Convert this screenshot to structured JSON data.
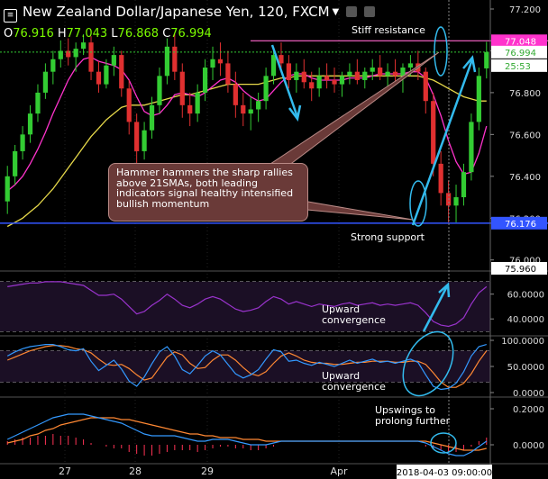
{
  "header": {
    "instrument": "New Zealand Dollar/Japanese Yen, 120, FXCM",
    "open_label": "O",
    "open": "76.916",
    "high_label": "H",
    "high": "77.043",
    "low_label": "L",
    "low": "76.868",
    "close_label": "C",
    "close": "76.994",
    "menu_icon": "caret-down-icon",
    "settings_icon": "gear-icon",
    "close_icon": "close-icon"
  },
  "annotations": {
    "stiff_resistance": "Stiff resistance",
    "strong_support": "Strong support",
    "callout": "Hammer hammers the sharp rallies above 21SMAs, both leading indicators signal healthy intensified bullish momentum",
    "rsi_note_line1": "Upward",
    "rsi_note_line2": "convergence",
    "stoch_note_line1": "Upward",
    "stoch_note_line2": "convergence",
    "macd_note_line1": "Upswings to",
    "macd_note_line2": "prolong further"
  },
  "colors": {
    "background": "#000000",
    "bull_candle": "#33cc33",
    "bear_candle": "#e03030",
    "sma_fast": "#ff33cc",
    "sma_slow": "#e6d84a",
    "resistance_line": "#ff66cc",
    "support_line": "#3355ff",
    "arrow": "#33bbee",
    "rsi_line": "#9933cc",
    "stoch_k": "#3399ff",
    "stoch_d": "#ff8833",
    "macd_line": "#3399ff",
    "macd_signal": "#ff8833",
    "macd_hist": "#ff3355"
  },
  "chart_data": [
    {
      "type": "candlestick",
      "title": "New Zealand Dollar/Japanese Yen, 120, FXCM",
      "ylim": [
        75.96,
        77.2
      ],
      "y_ticks": [
        "77.200",
        "77.000",
        "76.800",
        "76.600",
        "76.400",
        "76.200",
        "76.000"
      ],
      "x_ticks": [
        "27",
        "28",
        "29",
        "Apr"
      ],
      "crosshair_time": "2018-04-03 09:00:00",
      "price_badges": [
        {
          "label": "77.048",
          "value": 77.048,
          "color": "#ff33cc",
          "text_color": "#ffffff"
        },
        {
          "label": "76.994",
          "value": 76.994,
          "color": "#ffffff",
          "text_color": "#33aa33"
        },
        {
          "label": "25:53",
          "value": 76.955,
          "color": "#ffffff",
          "text_color": "#33aa33"
        },
        {
          "label": "76.176",
          "value": 76.176,
          "color": "#3355ff",
          "text_color": "#ffffff"
        },
        {
          "label": "75.960",
          "value": 75.96,
          "color": "#ffffff",
          "text_color": "#000000"
        }
      ],
      "levels": [
        {
          "name": "Stiff resistance",
          "value": 77.048
        },
        {
          "name": "Strong support",
          "value": 76.176
        }
      ],
      "candles": [
        [
          76.28,
          76.45,
          76.22,
          76.4
        ],
        [
          76.4,
          76.55,
          76.36,
          76.52
        ],
        [
          76.52,
          76.64,
          76.48,
          76.6
        ],
        [
          76.6,
          76.74,
          76.56,
          76.7
        ],
        [
          76.7,
          76.84,
          76.66,
          76.8
        ],
        [
          76.8,
          76.94,
          76.77,
          76.9
        ],
        [
          76.9,
          77.0,
          76.84,
          76.96
        ],
        [
          76.96,
          77.05,
          76.92,
          77.0
        ],
        [
          77.0,
          77.06,
          76.93,
          76.97
        ],
        [
          76.97,
          77.04,
          76.9,
          77.01
        ],
        [
          77.01,
          77.08,
          76.98,
          77.04
        ],
        [
          77.04,
          77.07,
          76.86,
          76.9
        ],
        [
          76.9,
          76.95,
          76.8,
          76.84
        ],
        [
          76.84,
          76.96,
          76.82,
          76.93
        ],
        [
          76.93,
          77.02,
          76.88,
          76.98
        ],
        [
          76.98,
          77.0,
          76.78,
          76.82
        ],
        [
          76.82,
          76.86,
          76.6,
          76.66
        ],
        [
          76.66,
          76.7,
          76.46,
          76.52
        ],
        [
          76.52,
          76.66,
          76.48,
          76.62
        ],
        [
          76.62,
          76.78,
          76.58,
          76.74
        ],
        [
          76.74,
          76.92,
          76.7,
          76.88
        ],
        [
          76.88,
          77.06,
          76.84,
          77.02
        ],
        [
          77.02,
          77.08,
          76.86,
          76.9
        ],
        [
          76.9,
          76.94,
          76.68,
          76.74
        ],
        [
          76.74,
          76.8,
          76.64,
          76.7
        ],
        [
          76.7,
          76.84,
          76.66,
          76.8
        ],
        [
          76.8,
          76.96,
          76.76,
          76.92
        ],
        [
          76.92,
          77.02,
          76.86,
          76.96
        ],
        [
          76.96,
          77.04,
          76.88,
          76.94
        ],
        [
          76.94,
          77.0,
          76.8,
          76.84
        ],
        [
          76.84,
          76.9,
          76.68,
          76.74
        ],
        [
          76.74,
          76.8,
          76.64,
          76.7
        ],
        [
          76.7,
          76.78,
          76.62,
          76.72
        ],
        [
          76.72,
          76.8,
          76.66,
          76.76
        ],
        [
          76.76,
          76.92,
          76.72,
          76.88
        ],
        [
          76.88,
          77.02,
          76.84,
          76.98
        ],
        [
          76.98,
          77.04,
          76.9,
          76.94
        ],
        [
          76.94,
          76.98,
          76.82,
          76.86
        ],
        [
          76.86,
          76.94,
          76.8,
          76.9
        ],
        [
          76.9,
          76.96,
          76.82,
          76.85
        ],
        [
          76.85,
          76.9,
          76.76,
          76.82
        ],
        [
          76.82,
          76.92,
          76.78,
          76.88
        ],
        [
          76.88,
          76.94,
          76.82,
          76.86
        ],
        [
          76.86,
          76.92,
          76.8,
          76.84
        ],
        [
          76.84,
          76.9,
          76.78,
          76.88
        ],
        [
          76.88,
          76.94,
          76.84,
          76.9
        ],
        [
          76.9,
          76.96,
          76.84,
          76.86
        ],
        [
          76.86,
          76.92,
          76.82,
          76.9
        ],
        [
          76.9,
          76.96,
          76.86,
          76.92
        ],
        [
          76.92,
          76.98,
          76.86,
          76.88
        ],
        [
          76.88,
          76.94,
          76.82,
          76.9
        ],
        [
          76.9,
          76.96,
          76.84,
          76.88
        ],
        [
          76.88,
          76.94,
          76.8,
          76.92
        ],
        [
          76.92,
          76.98,
          76.88,
          76.94
        ],
        [
          76.94,
          77.0,
          76.86,
          76.9
        ],
        [
          76.9,
          76.92,
          76.7,
          76.76
        ],
        [
          76.76,
          76.8,
          76.4,
          76.46
        ],
        [
          76.46,
          76.52,
          76.26,
          76.32
        ],
        [
          76.32,
          76.38,
          76.18,
          76.26
        ],
        [
          76.26,
          76.36,
          76.18,
          76.3
        ],
        [
          76.3,
          76.46,
          76.26,
          76.42
        ],
        [
          76.42,
          76.7,
          76.38,
          76.66
        ],
        [
          76.66,
          76.92,
          76.62,
          76.88
        ],
        [
          76.916,
          77.043,
          76.868,
          76.994
        ]
      ],
      "sma_fast": [
        76.33,
        76.36,
        76.4,
        76.46,
        76.53,
        76.61,
        76.7,
        76.78,
        76.86,
        76.92,
        76.96,
        76.97,
        76.95,
        76.94,
        76.93,
        76.91,
        76.86,
        76.78,
        76.71,
        76.69,
        76.7,
        76.74,
        76.79,
        76.8,
        76.79,
        76.78,
        76.8,
        76.83,
        76.86,
        76.87,
        76.85,
        76.81,
        76.78,
        76.76,
        76.77,
        76.81,
        76.85,
        76.88,
        76.89,
        76.89,
        76.87,
        76.86,
        76.86,
        76.86,
        76.86,
        76.87,
        76.87,
        76.87,
        76.88,
        76.89,
        76.89,
        76.89,
        76.89,
        76.9,
        76.9,
        76.87,
        76.79,
        76.69,
        76.57,
        76.47,
        76.41,
        76.42,
        76.51,
        76.64
      ],
      "sma_slow": [
        76.16,
        76.18,
        76.2,
        76.23,
        76.26,
        76.3,
        76.34,
        76.39,
        76.44,
        76.49,
        76.54,
        76.59,
        76.63,
        76.67,
        76.7,
        76.73,
        76.74,
        76.74,
        76.74,
        76.75,
        76.76,
        76.77,
        76.78,
        76.79,
        76.79,
        76.8,
        76.81,
        76.82,
        76.83,
        76.84,
        76.84,
        76.84,
        76.84,
        76.84,
        76.85,
        76.86,
        76.87,
        76.87,
        76.88,
        76.88,
        76.88,
        76.88,
        76.88,
        76.88,
        76.88,
        76.88,
        76.88,
        76.88,
        76.88,
        76.88,
        76.88,
        76.88,
        76.88,
        76.88,
        76.88,
        76.87,
        76.86,
        76.84,
        76.82,
        76.8,
        76.78,
        76.77,
        76.76,
        76.76
      ]
    },
    {
      "type": "line",
      "title": "RSI",
      "ylim": [
        30,
        75
      ],
      "y_ticks": [
        "60.0000",
        "40.0000"
      ],
      "levels": [
        70,
        30
      ],
      "series": [
        {
          "name": "",
          "values": [
            66,
            67,
            68,
            69,
            69,
            70,
            70,
            70,
            69,
            68,
            67,
            63,
            59,
            59,
            60,
            56,
            50,
            44,
            46,
            51,
            55,
            60,
            56,
            51,
            49,
            52,
            56,
            58,
            56,
            52,
            48,
            46,
            47,
            49,
            54,
            58,
            56,
            52,
            54,
            52,
            50,
            52,
            51,
            50,
            52,
            53,
            51,
            52,
            53,
            51,
            52,
            51,
            52,
            53,
            51,
            45,
            38,
            35,
            34,
            36,
            41,
            52,
            61,
            66
          ]
        }
      ]
    },
    {
      "type": "line",
      "title": "Stochastic",
      "ylim": [
        0,
        100
      ],
      "y_ticks": [
        "100.0000",
        "50.0000",
        "0.0000"
      ],
      "levels": [
        80,
        20
      ],
      "series": [
        {
          "name": "",
          "values": [
            70,
            78,
            84,
            88,
            90,
            92,
            92,
            88,
            82,
            80,
            84,
            60,
            42,
            52,
            62,
            45,
            22,
            12,
            30,
            55,
            78,
            88,
            70,
            44,
            36,
            52,
            70,
            80,
            72,
            54,
            36,
            28,
            34,
            44,
            64,
            82,
            78,
            60,
            62,
            56,
            52,
            58,
            54,
            50,
            56,
            62,
            56,
            60,
            64,
            58,
            60,
            56,
            60,
            64,
            58,
            34,
            12,
            6,
            8,
            18,
            40,
            70,
            88,
            92
          ]
        },
        {
          "name": "",
          "values": [
            62,
            68,
            74,
            80,
            84,
            88,
            90,
            90,
            88,
            84,
            82,
            76,
            64,
            54,
            52,
            54,
            46,
            34,
            24,
            28,
            48,
            68,
            78,
            72,
            56,
            46,
            48,
            62,
            72,
            72,
            62,
            48,
            36,
            32,
            40,
            56,
            70,
            76,
            70,
            62,
            58,
            56,
            56,
            54,
            54,
            56,
            58,
            58,
            60,
            60,
            60,
            58,
            58,
            60,
            60,
            54,
            38,
            20,
            10,
            10,
            18,
            36,
            60,
            80
          ]
        }
      ]
    },
    {
      "type": "line",
      "title": "MACD",
      "ylim": [
        -0.08,
        0.24
      ],
      "y_ticks": [
        "0.2000",
        "0.0000"
      ],
      "series": [
        {
          "name": "",
          "values": [
            0.03,
            0.05,
            0.07,
            0.09,
            0.11,
            0.13,
            0.15,
            0.16,
            0.17,
            0.17,
            0.17,
            0.16,
            0.15,
            0.14,
            0.13,
            0.12,
            0.1,
            0.08,
            0.06,
            0.05,
            0.05,
            0.05,
            0.05,
            0.04,
            0.03,
            0.02,
            0.02,
            0.03,
            0.03,
            0.03,
            0.02,
            0.01,
            0.0,
            0.0,
            0.0,
            0.01,
            0.02,
            0.02,
            0.02,
            0.02,
            0.02,
            0.02,
            0.02,
            0.02,
            0.02,
            0.02,
            0.02,
            0.02,
            0.02,
            0.02,
            0.02,
            0.02,
            0.02,
            0.02,
            0.02,
            0.01,
            -0.01,
            -0.03,
            -0.05,
            -0.06,
            -0.06,
            -0.04,
            -0.01,
            0.02
          ]
        },
        {
          "name": "",
          "values": [
            0.01,
            0.02,
            0.03,
            0.05,
            0.06,
            0.08,
            0.09,
            0.11,
            0.12,
            0.13,
            0.14,
            0.15,
            0.15,
            0.15,
            0.15,
            0.14,
            0.14,
            0.13,
            0.12,
            0.11,
            0.1,
            0.09,
            0.08,
            0.07,
            0.06,
            0.06,
            0.05,
            0.05,
            0.04,
            0.04,
            0.04,
            0.03,
            0.03,
            0.03,
            0.02,
            0.02,
            0.02,
            0.02,
            0.02,
            0.02,
            0.02,
            0.02,
            0.02,
            0.02,
            0.02,
            0.02,
            0.02,
            0.02,
            0.02,
            0.02,
            0.02,
            0.02,
            0.02,
            0.02,
            0.02,
            0.02,
            0.01,
            0.0,
            -0.01,
            -0.02,
            -0.03,
            -0.03,
            -0.03,
            -0.02
          ]
        }
      ]
    }
  ]
}
